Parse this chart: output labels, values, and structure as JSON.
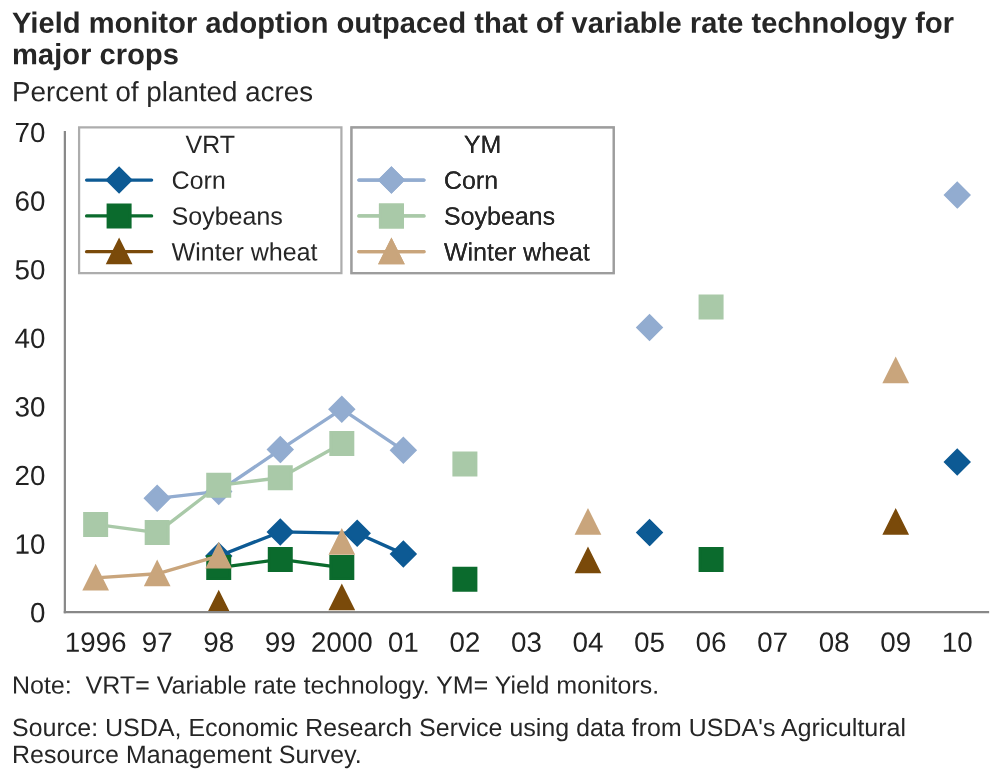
{
  "chart_data": {
    "type": "line",
    "title": "Yield monitor adoption outpaced that of variable rate technology for major crops",
    "ylabel": "Percent of planted acres",
    "annotations": [
      "Note:  VRT= Variable rate technology. YM= Yield monitors.",
      "Source: USDA, Economic Research Service using data from USDA's Agricultural Resource Management Survey."
    ],
    "legend_title": [
      "VRT",
      "YM"
    ],
    "legend": "top left",
    "grid": false,
    "xlim": [
      1995.5,
      2010.5
    ],
    "xticks": [
      {
        "value": 1996,
        "label": "1996"
      },
      {
        "value": 1997,
        "label": "97"
      },
      {
        "value": 1998,
        "label": "98"
      },
      {
        "value": 1999,
        "label": "99"
      },
      {
        "value": 2000,
        "label": "2000"
      },
      {
        "value": 2001,
        "label": "01"
      },
      {
        "value": 2002,
        "label": "02"
      },
      {
        "value": 2003,
        "label": "03"
      },
      {
        "value": 2004,
        "label": "04"
      },
      {
        "value": 2005,
        "label": "05"
      },
      {
        "value": 2006,
        "label": "06"
      },
      {
        "value": 2007,
        "label": "07"
      },
      {
        "value": 2008,
        "label": "08"
      },
      {
        "value": 2009,
        "label": "09"
      },
      {
        "value": 2010,
        "label": "10"
      }
    ],
    "ylim": [
      0,
      70
    ],
    "yticks": [
      0,
      10,
      20,
      30,
      40,
      50,
      60,
      70
    ],
    "x": [
      1996,
      1997,
      1998,
      1999,
      2000,
      2001,
      2002,
      2003,
      2004,
      2005,
      2006,
      2007,
      2008,
      2009,
      2010
    ],
    "series": [
      {
        "name": "Corn",
        "color": "#0d5a94",
        "marker": "diamond",
        "x": [
          1998,
          1999,
          2000.25,
          2001,
          2002,
          2003,
          2004,
          2005,
          2006,
          2007,
          2008,
          2009,
          2010
        ],
        "values": [
          8.2,
          11.7,
          11.5,
          8.5,
          null,
          null,
          null,
          11.6,
          null,
          null,
          null,
          null,
          21.9
        ]
      },
      {
        "name": "Soybeans",
        "color": "#0b6b2d",
        "marker": "square",
        "values": [
          null,
          null,
          6.5,
          7.7,
          6.5,
          null,
          4.8,
          null,
          null,
          null,
          7.7,
          null,
          null,
          null,
          null
        ]
      },
      {
        "name": "Winter wheat",
        "color": "#7a4a0a",
        "marker": "triangle",
        "values": [
          null,
          null,
          1.2,
          null,
          2.1,
          null,
          null,
          null,
          7.5,
          null,
          null,
          null,
          null,
          13.1,
          null
        ]
      },
      {
        "name": "Corn",
        "color": "#92acd0",
        "marker": "diamond",
        "values": [
          null,
          16.6,
          17.6,
          23.7,
          29.6,
          23.6,
          null,
          null,
          null,
          41.5,
          null,
          null,
          null,
          null,
          60.8
        ]
      },
      {
        "name": "Soybeans",
        "color": "#a9c9a8",
        "marker": "square",
        "values": [
          12.8,
          11.6,
          18.5,
          19.6,
          24.6,
          null,
          21.6,
          null,
          null,
          null,
          44.5,
          null,
          null,
          null,
          null
        ]
      },
      {
        "name": "Winter wheat",
        "color": "#c9a57c",
        "marker": "triangle",
        "values": [
          5.0,
          5.6,
          8.2,
          null,
          10.2,
          null,
          null,
          null,
          13.1,
          null,
          null,
          null,
          null,
          35.2,
          null
        ]
      }
    ]
  }
}
